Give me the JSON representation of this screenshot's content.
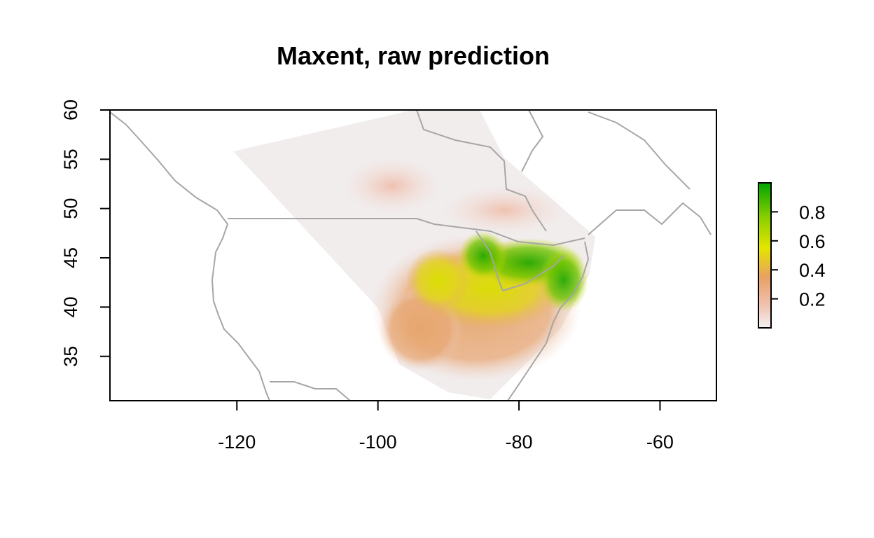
{
  "chart_data": {
    "type": "heatmap",
    "title": "Maxent, raw prediction",
    "xlim": [
      -138,
      -52
    ],
    "ylim": [
      30.5,
      60
    ],
    "x_ticks": [
      -120,
      -100,
      -80,
      -60
    ],
    "y_ticks": [
      35,
      40,
      45,
      50,
      55,
      60
    ],
    "x_tick_labels": [
      "-120",
      "-100",
      "-80",
      "-60"
    ],
    "y_tick_labels": [
      "35",
      "40",
      "45",
      "50",
      "55",
      "60"
    ],
    "legend": {
      "position": "right",
      "range": [
        0,
        1
      ],
      "ticks": [
        0.2,
        0.4,
        0.6,
        0.8
      ],
      "tick_labels": [
        "0.2",
        "0.4",
        "0.6",
        "0.8"
      ],
      "colors": [
        "#f2f2f2",
        "#f1c3b3",
        "#e8a062",
        "#e6c33c",
        "#e5e500",
        "#9fd400",
        "#00a600"
      ]
    },
    "colors": {
      "boundaries": "#a6a6a6",
      "low": "#f2f2f2",
      "mid": "#e8a062",
      "high": "#00a600"
    }
  }
}
